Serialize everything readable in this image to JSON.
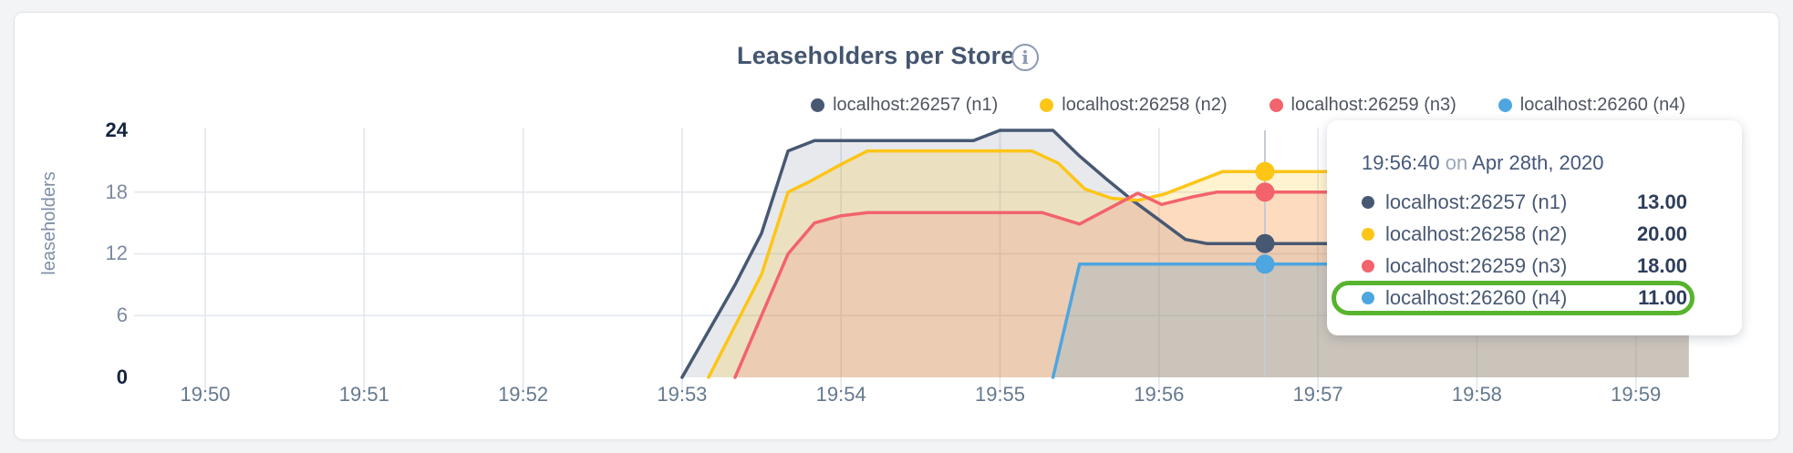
{
  "header": {
    "title": "Leaseholders per Store"
  },
  "legend": {
    "items": [
      {
        "label": "localhost:26257 (n1)",
        "color": "#475872"
      },
      {
        "label": "localhost:26258 (n2)",
        "color": "#fdc516"
      },
      {
        "label": "localhost:26259 (n3)",
        "color": "#f2636c"
      },
      {
        "label": "localhost:26260 (n4)",
        "color": "#4da6e0"
      }
    ]
  },
  "tooltip": {
    "time": "19:56:40",
    "on_word": "on",
    "date": "Apr 28th, 2020",
    "rows": [
      {
        "label": "localhost:26257 (n1)",
        "value": "13.00",
        "color": "#475872"
      },
      {
        "label": "localhost:26258 (n2)",
        "value": "20.00",
        "color": "#fdc516"
      },
      {
        "label": "localhost:26259 (n3)",
        "value": "18.00",
        "color": "#f2636c"
      },
      {
        "label": "localhost:26260 (n4)",
        "value": "11.00",
        "color": "#4da6e0"
      }
    ],
    "highlighted_row": 3,
    "highlight_color": "#58b32e"
  },
  "chart_data": {
    "type": "area",
    "title": "Leaseholders per Store",
    "xlabel": "",
    "ylabel": "leaseholders",
    "ylim": [
      0,
      24
    ],
    "grid": true,
    "legend_position": "top-right",
    "x_unit": "seconds after 19:50:00",
    "x_ticks": [
      {
        "t": 0,
        "label": "19:50"
      },
      {
        "t": 60,
        "label": "19:51"
      },
      {
        "t": 120,
        "label": "19:52"
      },
      {
        "t": 180,
        "label": "19:53"
      },
      {
        "t": 240,
        "label": "19:54"
      },
      {
        "t": 300,
        "label": "19:55"
      },
      {
        "t": 360,
        "label": "19:56"
      },
      {
        "t": 420,
        "label": "19:57"
      },
      {
        "t": 480,
        "label": "19:58"
      },
      {
        "t": 540,
        "label": "19:59"
      }
    ],
    "y_ticks": [
      {
        "v": 0,
        "label": "0",
        "bold": true
      },
      {
        "v": 6,
        "label": "6",
        "bold": false
      },
      {
        "v": 12,
        "label": "12",
        "bold": false
      },
      {
        "v": 18,
        "label": "18",
        "bold": false
      },
      {
        "v": 24,
        "label": "24",
        "bold": true
      }
    ],
    "series": [
      {
        "name": "localhost:26257 (n1)",
        "color": "#475872",
        "fill_opacity": 0.13,
        "points": [
          [
            180,
            0
          ],
          [
            190,
            4.5
          ],
          [
            200,
            9
          ],
          [
            210,
            14
          ],
          [
            220,
            22
          ],
          [
            230,
            23
          ],
          [
            290,
            23
          ],
          [
            300,
            24
          ],
          [
            320,
            24
          ],
          [
            330,
            21.5
          ],
          [
            340,
            19.3
          ],
          [
            350,
            17.2
          ],
          [
            360,
            15.3
          ],
          [
            370,
            13.4
          ],
          [
            378,
            13
          ],
          [
            560,
            13
          ]
        ]
      },
      {
        "name": "localhost:26258 (n2)",
        "color": "#fdc516",
        "fill_opacity": 0.2,
        "points": [
          [
            190,
            0
          ],
          [
            200,
            5
          ],
          [
            210,
            10
          ],
          [
            220,
            18
          ],
          [
            228,
            19
          ],
          [
            240,
            20.7
          ],
          [
            250,
            22
          ],
          [
            312,
            22
          ],
          [
            322,
            20.8
          ],
          [
            332,
            18.3
          ],
          [
            342,
            17.4
          ],
          [
            352,
            17.2
          ],
          [
            362,
            17.8
          ],
          [
            372,
            18.8
          ],
          [
            384,
            20
          ],
          [
            560,
            20
          ]
        ]
      },
      {
        "name": "localhost:26259 (n3)",
        "color": "#f2636c",
        "fill_opacity": 0.17,
        "points": [
          [
            200,
            0
          ],
          [
            210,
            6
          ],
          [
            220,
            12
          ],
          [
            230,
            15
          ],
          [
            240,
            15.7
          ],
          [
            250,
            16
          ],
          [
            316,
            16
          ],
          [
            330,
            14.9
          ],
          [
            344,
            16.8
          ],
          [
            352,
            17.9
          ],
          [
            361,
            16.8
          ],
          [
            372,
            17.5
          ],
          [
            382,
            18
          ],
          [
            560,
            18
          ]
        ]
      },
      {
        "name": "localhost:26260 (n4)",
        "color": "#4da6e0",
        "fill_opacity": 0.2,
        "points": [
          [
            320,
            0
          ],
          [
            330,
            11
          ],
          [
            560,
            11
          ]
        ]
      }
    ],
    "hover": {
      "t": 400,
      "time": "19:56:40",
      "date": "Apr 28th, 2020",
      "values": [
        13,
        20,
        18,
        11
      ]
    }
  }
}
